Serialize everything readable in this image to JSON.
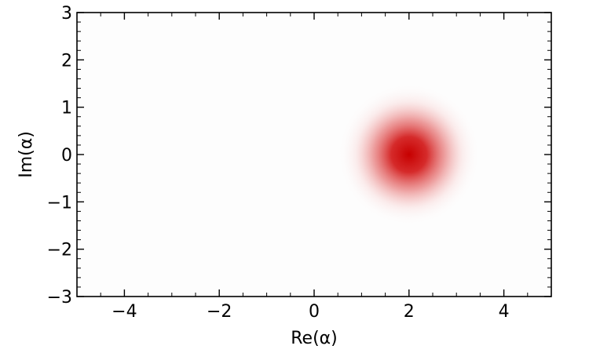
{
  "chart_data": {
    "type": "heatmap",
    "title": "",
    "xlabel": "Re(α)",
    "ylabel": "Im(α)",
    "xlim": [
      -5,
      5
    ],
    "ylim": [
      -3,
      3
    ],
    "x_ticks": [
      -4,
      -2,
      0,
      2,
      4
    ],
    "y_ticks": [
      -3,
      -2,
      -1,
      0,
      1,
      2,
      3
    ],
    "x_tick_labels": [
      "−4",
      "−2",
      "0",
      "2",
      "4"
    ],
    "y_tick_labels": [
      "−3",
      "−2",
      "−1",
      "0",
      "1",
      "2",
      "3"
    ],
    "x_minor_step": 0.5,
    "y_minor_step": 0.2,
    "grid": false,
    "distribution": {
      "kind": "gaussian",
      "center": [
        2,
        0
      ],
      "sigma": 0.5,
      "peak_color": "#c70000",
      "background_color": "#fdfdfd"
    }
  }
}
